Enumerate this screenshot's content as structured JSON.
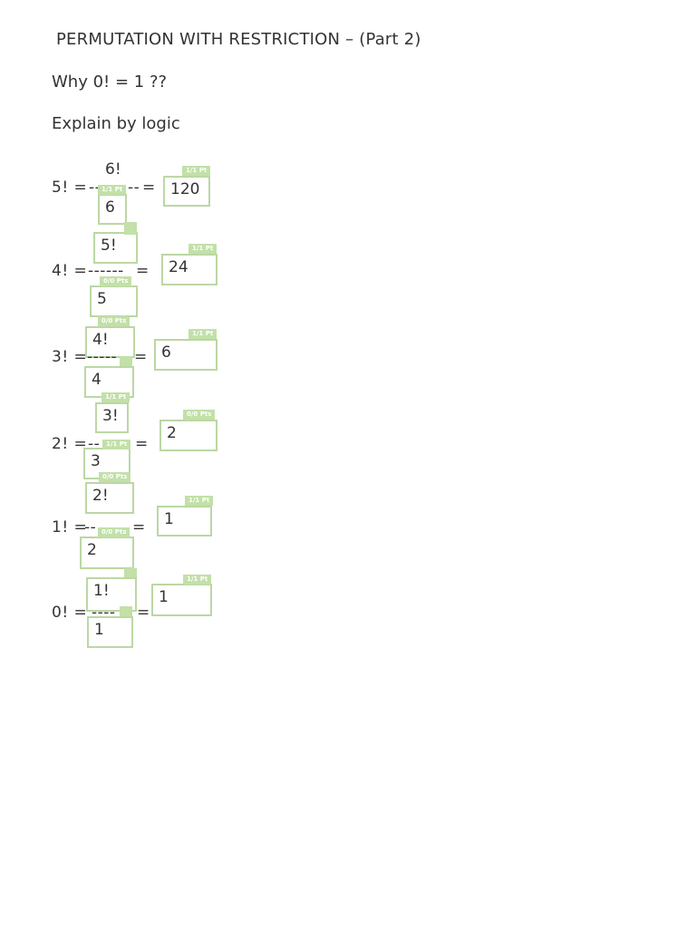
{
  "title": "PERMUTATION WITH RESTRICTION – (Part 2)",
  "question": "Why 0! = 1 ??",
  "instruction": "Explain by logic",
  "rows": [
    {
      "lhs": "5! =",
      "dashes": "--",
      "dashes2": "--",
      "eq": "=",
      "numerator": "6!",
      "denominator": "6",
      "result": "120",
      "badge_den": "1/1 Pt",
      "badge_res": "1/1 Pt"
    },
    {
      "lhs": "4! =",
      "dashes": "------",
      "eq": "=",
      "numerator": "5!",
      "denominator": "5",
      "result": "24",
      "badge_den": "0/0 Pts",
      "badge_res": "1/1 Pt"
    },
    {
      "lhs": "3! =",
      "dashes": "-----",
      "eq": "=",
      "numerator": "4!",
      "denominator": "4",
      "result": "6",
      "badge_num": "0/0 Pts",
      "badge_res": "1/1 Pt"
    },
    {
      "lhs": "2! =",
      "dashes": "--",
      "eq": "=",
      "numerator": "3!",
      "denominator": "3",
      "result": "2",
      "badge_num": "1/1 Pt",
      "badge_den": "1/1 Pt",
      "badge_res": "0/0 Pts"
    },
    {
      "lhs": "1! =",
      "dashes": "--",
      "eq": "=",
      "numerator": "2!",
      "denominator": "2",
      "result": "1",
      "badge_num": "0/0 Pts",
      "badge_den": "0/0 Pts",
      "badge_res": "1/1 Pt"
    },
    {
      "lhs": "0! =",
      "dashes": "----",
      "eq": "=",
      "numerator": "1!",
      "denominator": "1",
      "result": "1",
      "badge_res": "1/1 Pt"
    }
  ],
  "colors": {
    "box_border": "#bcd7a4",
    "badge": "#c2e0a8",
    "text": "#333333"
  }
}
